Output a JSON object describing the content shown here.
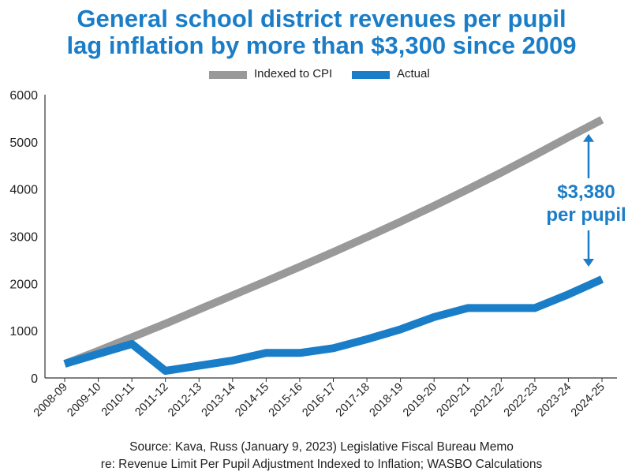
{
  "title_line1": "General school district revenues per pupil",
  "title_line2": "lag inflation by more than $3,300 since 2009",
  "legend": {
    "cpi_label": "Indexed to CPI",
    "actual_label": "Actual"
  },
  "annotation": {
    "line1": "$3,380",
    "line2": "per pupil"
  },
  "source": {
    "line1": "Source: Kava, Russ (January 9, 2023) Legislative Fiscal Bureau Memo",
    "line2": "re: Revenue Limit Per Pupil Adjustment Indexed to Inflation; WASBO Calculations"
  },
  "colors": {
    "cpi": "#999999",
    "actual": "#1a7dc8"
  },
  "chart_data": {
    "type": "line",
    "categories": [
      "2008-09",
      "2009-10",
      "2010-11",
      "2011-12",
      "2012-13",
      "2013-14",
      "2014-15",
      "2015-16",
      "2016-17",
      "2017-18",
      "2018-19",
      "2019-20",
      "2020-21",
      "2021-22",
      "2022-23",
      "2023-24",
      "2024-25"
    ],
    "series": [
      {
        "name": "Indexed to CPI",
        "values": [
          300,
          575,
          860,
          1150,
          1450,
          1750,
          2050,
          2355,
          2665,
          2985,
          3310,
          3645,
          3995,
          4350,
          4720,
          5100,
          5470
        ]
      },
      {
        "name": "Actual",
        "values": [
          300,
          510,
          720,
          150,
          260,
          370,
          530,
          530,
          630,
          820,
          1030,
          1290,
          1480,
          1480,
          1480,
          1770,
          2090
        ]
      }
    ],
    "yticks": [
      0,
      1000,
      2000,
      3000,
      4000,
      5000,
      6000
    ],
    "ylim": [
      0,
      6000
    ],
    "legend_position": "top-center"
  }
}
